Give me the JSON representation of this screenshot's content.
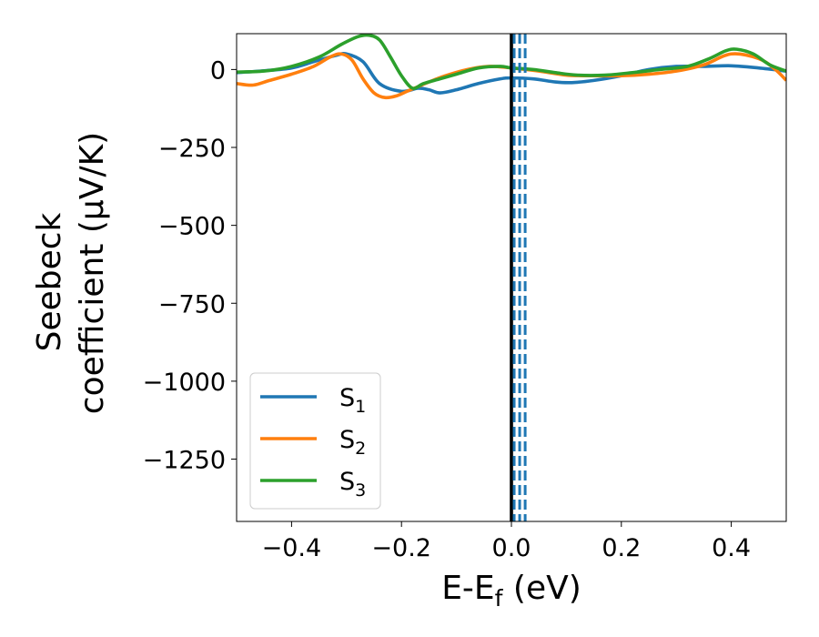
{
  "chart_data": {
    "type": "line",
    "xlabel_main": "E-E",
    "xlabel_sub": "f",
    "xlabel_unit": " (eV)",
    "ylabel_line1": "Seebeck",
    "ylabel_line2": "coefficient  (μV/K)",
    "xlim": [
      -0.5,
      0.5
    ],
    "ylim": [
      -1450,
      115
    ],
    "x_ticks": [
      -0.4,
      -0.2,
      0.0,
      0.2,
      0.4
    ],
    "x_tick_labels": [
      "−0.4",
      "−0.2",
      "0.0",
      "0.2",
      "0.4"
    ],
    "y_ticks": [
      0,
      -250,
      -500,
      -750,
      -1000,
      -1250
    ],
    "y_tick_labels": [
      "0",
      "−250",
      "−500",
      "−750",
      "−1000",
      "−1250"
    ],
    "grid": false,
    "legend_position": "lower-left",
    "vertical_lines": [
      {
        "x": 0.0,
        "style": "solid",
        "color": "#000000"
      },
      {
        "x": 0.005,
        "style": "dashed",
        "color": "#1f77b4"
      },
      {
        "x": 0.015,
        "style": "dashed",
        "color": "#1f77b4"
      },
      {
        "x": 0.025,
        "style": "dashed",
        "color": "#1f77b4"
      }
    ],
    "series": [
      {
        "name": "S",
        "subscript": "1",
        "color": "#1f77b4",
        "x": [
          -0.5,
          -0.45,
          -0.4,
          -0.36,
          -0.32,
          -0.3,
          -0.27,
          -0.24,
          -0.2,
          -0.17,
          -0.15,
          -0.13,
          -0.1,
          -0.06,
          -0.02,
          0.0,
          0.04,
          0.08,
          0.11,
          0.15,
          0.2,
          0.25,
          0.3,
          0.35,
          0.4,
          0.45,
          0.5
        ],
        "values": [
          -10,
          -4,
          5,
          25,
          45,
          50,
          25,
          -45,
          -70,
          -60,
          -65,
          -75,
          -65,
          -45,
          -30,
          -27,
          -30,
          -40,
          -42,
          -35,
          -20,
          0,
          10,
          10,
          12,
          5,
          -5
        ]
      },
      {
        "name": "S",
        "subscript": "2",
        "color": "#ff7f0e",
        "x": [
          -0.5,
          -0.47,
          -0.44,
          -0.4,
          -0.36,
          -0.33,
          -0.31,
          -0.29,
          -0.27,
          -0.25,
          -0.23,
          -0.21,
          -0.19,
          -0.17,
          -0.15,
          -0.12,
          -0.08,
          -0.04,
          0.0,
          0.05,
          0.1,
          0.15,
          0.2,
          0.25,
          0.3,
          0.35,
          0.4,
          0.45,
          0.48,
          0.5
        ],
        "values": [
          -45,
          -50,
          -35,
          -15,
          10,
          40,
          50,
          30,
          -30,
          -75,
          -90,
          -85,
          -70,
          -55,
          -40,
          -20,
          0,
          10,
          5,
          -5,
          -18,
          -20,
          -20,
          -15,
          -5,
          15,
          50,
          35,
          0,
          -35
        ]
      },
      {
        "name": "S",
        "subscript": "3",
        "color": "#2ca02c",
        "x": [
          -0.5,
          -0.45,
          -0.4,
          -0.35,
          -0.31,
          -0.28,
          -0.26,
          -0.24,
          -0.22,
          -0.2,
          -0.18,
          -0.16,
          -0.13,
          -0.1,
          -0.06,
          -0.02,
          0.0,
          0.04,
          0.08,
          0.12,
          0.17,
          0.22,
          0.27,
          0.32,
          0.36,
          0.39,
          0.41,
          0.44,
          0.47,
          0.5
        ],
        "values": [
          -8,
          -5,
          10,
          40,
          80,
          105,
          110,
          95,
          40,
          -20,
          -60,
          -45,
          -30,
          -15,
          5,
          10,
          5,
          0,
          -10,
          -18,
          -18,
          -10,
          0,
          10,
          35,
          60,
          65,
          50,
          15,
          -5
        ]
      }
    ]
  }
}
